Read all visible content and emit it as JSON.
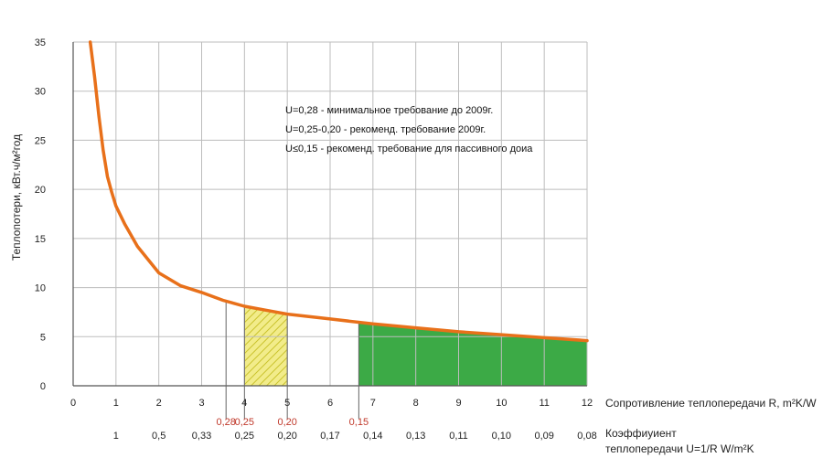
{
  "chart_data": {
    "type": "line",
    "xlabel": "Сопротивление теплопередачи R, m²K/W",
    "ylabel": "Теплопотери, кВт.ч/м²год",
    "secondary_xlabel": [
      "Коэффиуиент",
      "теплопередачи U=1/R W/m²K"
    ],
    "xlim": [
      0,
      12
    ],
    "ylim": [
      0,
      35
    ],
    "grid": true,
    "x_ticks": [
      "0",
      "1",
      "2",
      "3",
      "4",
      "5",
      "6",
      "7",
      "8",
      "9",
      "10",
      "11",
      "12"
    ],
    "y_ticks": [
      "0",
      "5",
      "10",
      "15",
      "20",
      "25",
      "30",
      "35"
    ],
    "secondary_ticks": [
      {
        "x": 1,
        "label": "1"
      },
      {
        "x": 2,
        "label": "0,5"
      },
      {
        "x": 3,
        "label": "0,33"
      },
      {
        "x": 4,
        "label": "0,25"
      },
      {
        "x": 5,
        "label": "0,20"
      },
      {
        "x": 6,
        "label": "0,17"
      },
      {
        "x": 7,
        "label": "0,14"
      },
      {
        "x": 8,
        "label": "0,13"
      },
      {
        "x": 9,
        "label": "0,11"
      },
      {
        "x": 10,
        "label": "0,10"
      },
      {
        "x": 11,
        "label": "0,09"
      },
      {
        "x": 12,
        "label": "0,08"
      }
    ],
    "markers": [
      {
        "x": 3.57,
        "label": "0,28"
      },
      {
        "x": 4.0,
        "label": "0,25"
      },
      {
        "x": 5.0,
        "label": "0,20"
      },
      {
        "x": 6.67,
        "label": "0,15"
      }
    ],
    "regions": [
      {
        "x": [
          4.0,
          5.0
        ],
        "fill": "hatched-yellow"
      },
      {
        "x": [
          6.67,
          12.0
        ],
        "fill": "green"
      }
    ],
    "series": [
      {
        "color": "#e8701a",
        "x": [
          0.4,
          0.5,
          0.6,
          0.7,
          0.8,
          0.9,
          1.0,
          1.2,
          1.5,
          2.0,
          2.5,
          3.0,
          3.5,
          4.0,
          4.5,
          5.0,
          6.0,
          7.0,
          8.0,
          9.0,
          10.0,
          11.0,
          12.0
        ],
        "y": [
          35,
          31.5,
          27.5,
          24,
          21.3,
          19.7,
          18.3,
          16.5,
          14.2,
          11.5,
          10.2,
          9.5,
          8.7,
          8.1,
          7.7,
          7.3,
          6.8,
          6.3,
          5.9,
          5.5,
          5.2,
          4.9,
          4.6
        ]
      }
    ],
    "annotations": [
      "U=0,28 - минимальное требование до 2009г.",
      "U=0,25-0,20 - рекоменд. требование 2009г.",
      "U≤0,15 - рекоменд. требование для пассивного доиа"
    ],
    "colors": {
      "curve": "#e8701a",
      "green_fill": "#3caa46",
      "yellow_fill": "#f2ec8a",
      "hatch": "#c9c22b",
      "grid": "#bdbdbd",
      "marker_text": "#c0392b"
    }
  }
}
